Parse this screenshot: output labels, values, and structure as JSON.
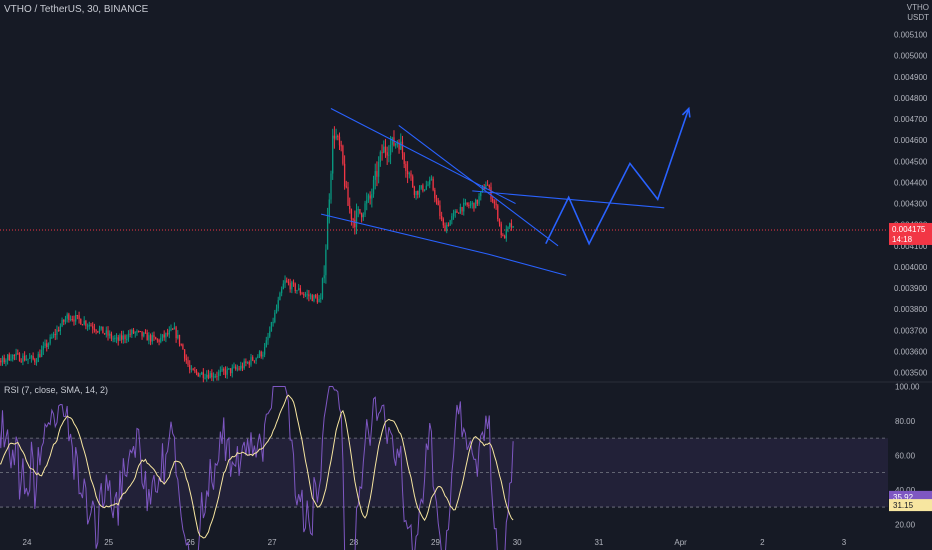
{
  "header": {
    "title": "VTHO / TetherUS, 30, BINANCE"
  },
  "price_axis": {
    "unit_top": "VTHO",
    "unit_bottom": "USDT",
    "ticks": [
      "0.005100",
      "0.005000",
      "0.004900",
      "0.004800",
      "0.004700",
      "0.004600",
      "0.004500",
      "0.004400",
      "0.004300",
      "0.004200",
      "0.004100",
      "0.004000",
      "0.003900",
      "0.003800",
      "0.003700",
      "0.003600",
      "0.003500"
    ]
  },
  "time_axis": {
    "ticks": [
      "24",
      "25",
      "26",
      "27",
      "28",
      "29",
      "30",
      "31",
      "Apr",
      "2",
      "3"
    ]
  },
  "current_price": {
    "label": "0.004175",
    "countdown": "14:18",
    "color": "#f23645"
  },
  "rsi": {
    "title": "RSI (7, close, SMA, 14, 2)",
    "ticks": [
      "100.00",
      "80.00",
      "60.00",
      "40.00",
      "20.00"
    ],
    "value_label": "35.92",
    "sma_label": "31.15",
    "rsi_color": "#7e57c2",
    "sma_color": "#f7e6a0"
  },
  "colors": {
    "background": "#161a25",
    "up_candle": "#089981",
    "down_candle": "#f23645",
    "drawing": "#2962ff"
  },
  "chart_data": [
    {
      "type": "candlestick",
      "title": "VTHO / TetherUS, 30, BINANCE",
      "ylim": [
        0.00346,
        0.00524
      ],
      "x_ticks": [
        "24",
        "25",
        "26",
        "27",
        "28",
        "29",
        "30",
        "31",
        "Apr",
        "2",
        "3"
      ],
      "path_anchors": [
        [
          23.2,
          0.00349
        ],
        [
          23.5,
          0.0035
        ],
        [
          23.8,
          0.00358
        ],
        [
          24.1,
          0.00356
        ],
        [
          24.3,
          0.00366
        ],
        [
          24.5,
          0.00377
        ],
        [
          24.7,
          0.00374
        ],
        [
          24.9,
          0.0037
        ],
        [
          25.1,
          0.00365
        ],
        [
          25.3,
          0.00369
        ],
        [
          25.6,
          0.00365
        ],
        [
          25.8,
          0.0037
        ],
        [
          25.9,
          0.00362
        ],
        [
          26.0,
          0.0035
        ],
        [
          26.3,
          0.00349
        ],
        [
          26.6,
          0.00352
        ],
        [
          26.9,
          0.0036
        ],
        [
          27.0,
          0.00373
        ],
        [
          27.15,
          0.00393
        ],
        [
          27.4,
          0.00387
        ],
        [
          27.6,
          0.00384
        ],
        [
          27.65,
          0.00405
        ],
        [
          27.75,
          0.00465
        ],
        [
          27.85,
          0.00453
        ],
        [
          27.92,
          0.0043
        ],
        [
          28.0,
          0.00422
        ],
        [
          28.2,
          0.00432
        ],
        [
          28.35,
          0.00455
        ],
        [
          28.55,
          0.0046
        ],
        [
          28.75,
          0.00435
        ],
        [
          28.95,
          0.0044
        ],
        [
          29.1,
          0.00418
        ],
        [
          29.3,
          0.00428
        ],
        [
          29.5,
          0.0043
        ],
        [
          29.62,
          0.0044
        ],
        [
          29.75,
          0.00427
        ],
        [
          29.82,
          0.00413
        ],
        [
          29.92,
          0.0042
        ],
        [
          29.95,
          0.004175
        ]
      ],
      "current_price": 0.004175,
      "countdown": "14:18"
    },
    {
      "type": "line",
      "title": "RSI (7, close, SMA, 14, 2)",
      "ylim": [
        8,
        102
      ],
      "levels": [
        70,
        50,
        30
      ],
      "series": [
        {
          "name": "RSI",
          "last": 35.92
        },
        {
          "name": "SMA",
          "last": 31.15
        }
      ]
    }
  ]
}
